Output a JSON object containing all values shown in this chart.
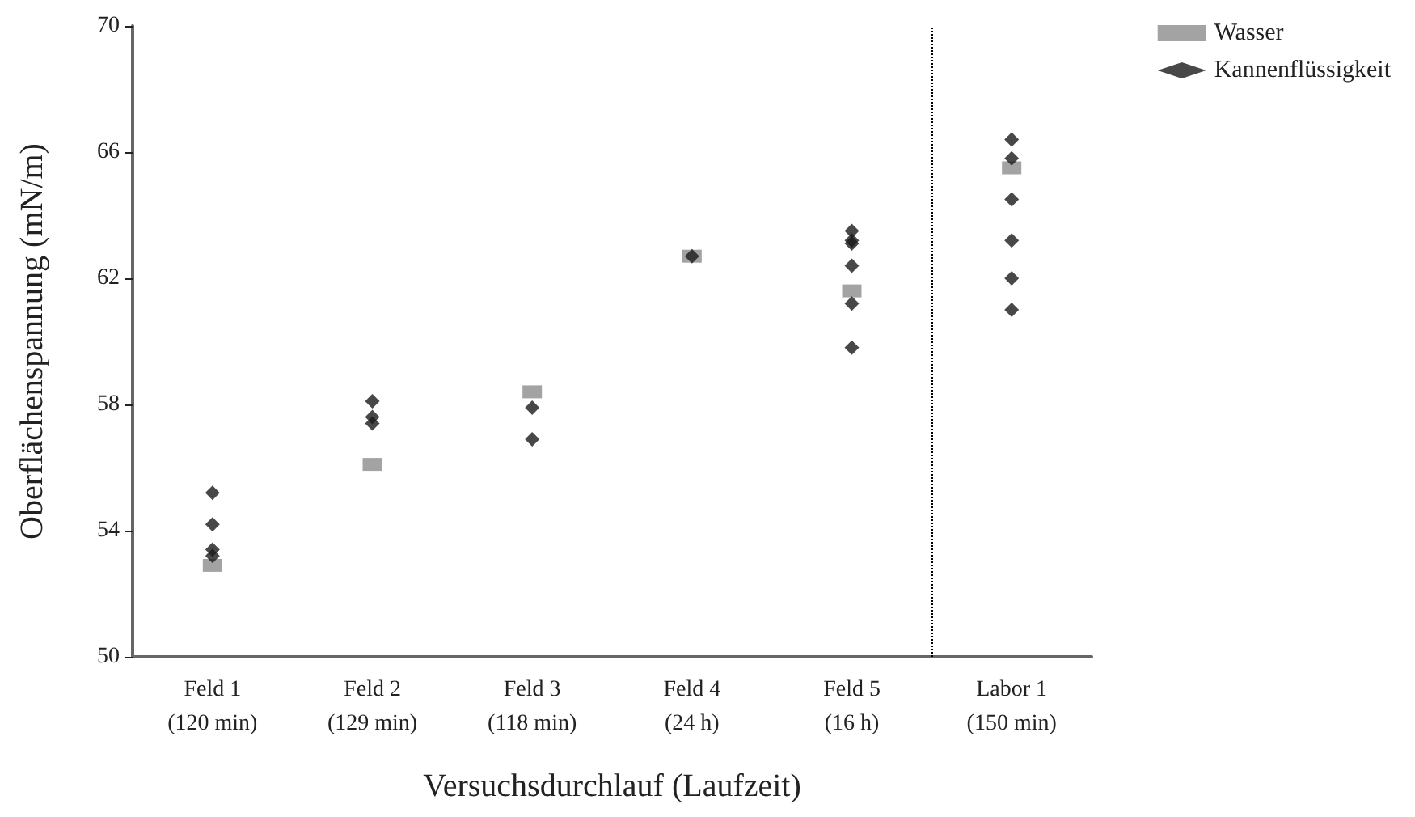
{
  "chart_data": {
    "type": "scatter",
    "xlabel": "Versuchsdurchlauf (Laufzeit)",
    "ylabel": "Oberflächenspannung (mN/m)",
    "categories": [
      "Feld 1\n(120 min)",
      "Feld 2\n(129 min)",
      "Feld 3\n(118 min)",
      "Feld 4\n(24 h)",
      "Feld 5\n(16 h)",
      "Labor 1\n(150 min)"
    ],
    "series": [
      {
        "name": "Wasser",
        "color": "#8c8c8c",
        "marker": "square",
        "values": [
          52.9,
          56.1,
          58.4,
          62.7,
          61.6,
          65.5
        ]
      },
      {
        "name": "Kannenflüssigkeit",
        "color": "#1a1a1a",
        "marker": "diamond",
        "x": [
          "Feld 1\n(120 min)",
          "Feld 1\n(120 min)",
          "Feld 1\n(120 min)",
          "Feld 1\n(120 min)",
          "Feld 2\n(129 min)",
          "Feld 2\n(129 min)",
          "Feld 2\n(129 min)",
          "Feld 3\n(118 min)",
          "Feld 3\n(118 min)",
          "Feld 4\n(24 h)",
          "Feld 5\n(16 h)",
          "Feld 5\n(16 h)",
          "Feld 5\n(16 h)",
          "Feld 5\n(16 h)",
          "Feld 5\n(16 h)",
          "Feld 5\n(16 h)",
          "Labor 1\n(150 min)",
          "Labor 1\n(150 min)",
          "Labor 1\n(150 min)",
          "Labor 1\n(150 min)",
          "Labor 1\n(150 min)",
          "Labor 1\n(150 min)"
        ],
        "values": [
          55.2,
          54.2,
          53.4,
          53.2,
          58.1,
          57.6,
          57.4,
          57.9,
          56.9,
          62.7,
          63.5,
          63.2,
          63.1,
          62.4,
          61.2,
          59.8,
          66.4,
          65.8,
          64.5,
          63.2,
          62.0,
          61.0
        ]
      }
    ],
    "ylim": [
      50,
      70
    ],
    "yticks": [
      50,
      54,
      58,
      62,
      66,
      70
    ],
    "grid": false,
    "legend": "top right"
  }
}
